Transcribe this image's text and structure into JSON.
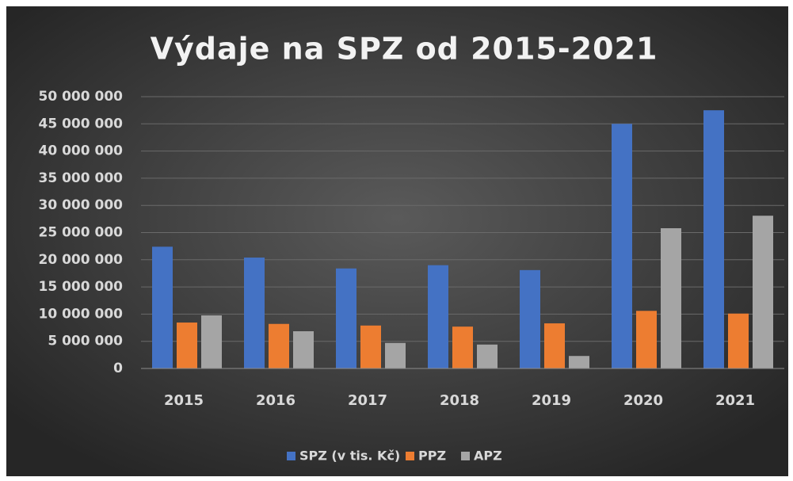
{
  "chart_data": {
    "type": "bar",
    "title": "Výdaje na SPZ od 2015-2021",
    "categories": [
      "2015",
      "2016",
      "2017",
      "2018",
      "2019",
      "2020",
      "2021"
    ],
    "series": [
      {
        "name": "SPZ (v tis. Kč)",
        "color": "#4472c4",
        "values": [
          22400000,
          20400000,
          18400000,
          19000000,
          18100000,
          45000000,
          47500000
        ]
      },
      {
        "name": "PPZ",
        "color": "#ed7d31",
        "values": [
          8450000,
          8200000,
          7900000,
          7700000,
          8300000,
          10600000,
          10100000
        ]
      },
      {
        "name": "APZ",
        "color": "#a5a5a5",
        "values": [
          9770000,
          6850000,
          4700000,
          4400000,
          2300000,
          25800000,
          28100000
        ]
      }
    ],
    "ylim": [
      0,
      50000000
    ],
    "yticks": [
      0,
      {
        "value": 5000000,
        "label": "5 000 000"
      },
      {
        "value": 10000000,
        "label": "10 000 000"
      },
      {
        "value": 15000000,
        "label": "15 000 000"
      },
      {
        "value": 20000000,
        "label": "20 000 000"
      },
      {
        "value": 25000000,
        "label": "25 000 000"
      },
      {
        "value": 30000000,
        "label": "30 000 000"
      },
      {
        "value": 35000000,
        "label": "35 000 000"
      },
      {
        "value": 40000000,
        "label": "40 000 000"
      },
      {
        "value": 45000000,
        "label": "45 000 000"
      },
      {
        "value": 50000000,
        "label": "50 000 000"
      }
    ],
    "grid": true,
    "legend": "bottom"
  }
}
